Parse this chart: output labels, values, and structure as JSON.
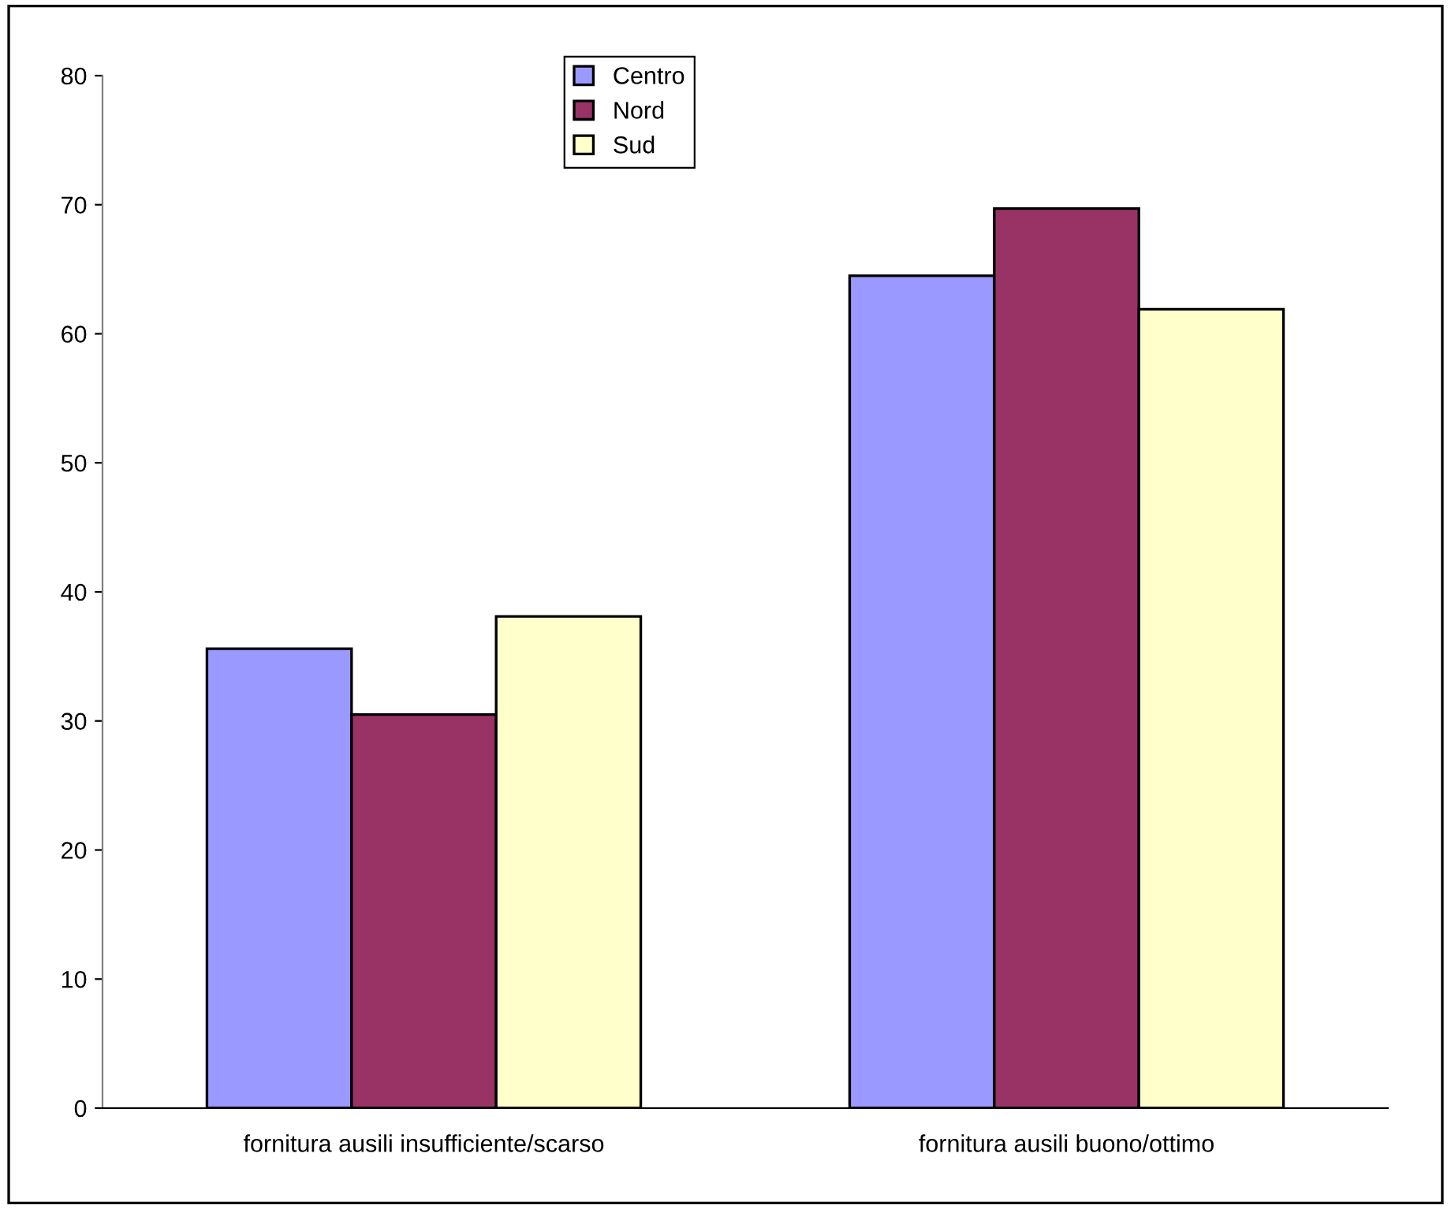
{
  "chart_data": {
    "type": "bar",
    "categories": [
      "fornitura ausili insufficiente/scarso",
      "fornitura ausili buono/ottimo"
    ],
    "series": [
      {
        "name": "Centro",
        "color": "#9999ff",
        "values": [
          35.6,
          64.5
        ]
      },
      {
        "name": "Nord",
        "color": "#993366",
        "values": [
          30.5,
          69.7
        ]
      },
      {
        "name": "Sud",
        "color": "#ffffcc",
        "values": [
          38.1,
          61.9
        ]
      }
    ],
    "ylim": [
      0,
      80
    ],
    "yticks": [
      0,
      10,
      20,
      30,
      40,
      50,
      60,
      70,
      80
    ],
    "grid": false,
    "legend": "top"
  }
}
